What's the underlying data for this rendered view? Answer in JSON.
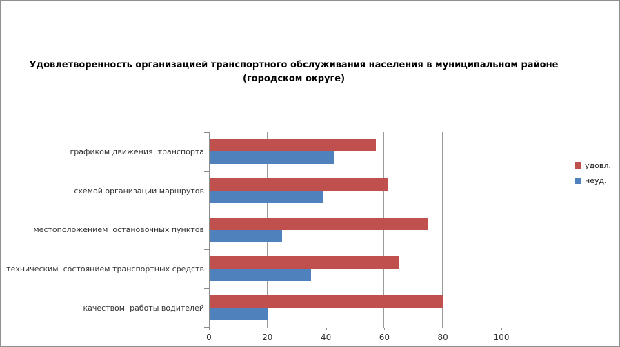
{
  "title": {
    "line1": "Удовлетворенность организацией транспортного обслуживания населения в муниципальном районе",
    "line2": "(городском округе)"
  },
  "chart_data": {
    "type": "bar",
    "orientation": "horizontal",
    "title": "Удовлетворенность организацией транспортного обслуживания населения в муниципальном районе (городском округе)",
    "categories": [
      "графиком движения  транспорта",
      "схемой организации маршрутов",
      "местоположением  остановочных пунктов",
      "техническим  состоянием транспортных средств",
      "качеством  работы водителей"
    ],
    "series": [
      {
        "name": "удовл.",
        "color": "#c0504d",
        "values": [
          57,
          61,
          75,
          65,
          80
        ]
      },
      {
        "name": "неуд.",
        "color": "#4f81bd",
        "values": [
          43,
          39,
          25,
          35,
          20
        ]
      }
    ],
    "xlim": [
      0,
      100
    ],
    "x_ticks": [
      0,
      20,
      40,
      60,
      80,
      100
    ],
    "xlabel": "",
    "ylabel": "",
    "grid": "vertical",
    "legend_position": "right"
  },
  "colors": {
    "series_udovl": "#c0504d",
    "series_neud": "#4f81bd",
    "axis": "#8c8c8c",
    "gridline": "#9a9a9a",
    "frame_border": "#8f8f8f",
    "text": "#333333",
    "title_text": "#000000"
  }
}
